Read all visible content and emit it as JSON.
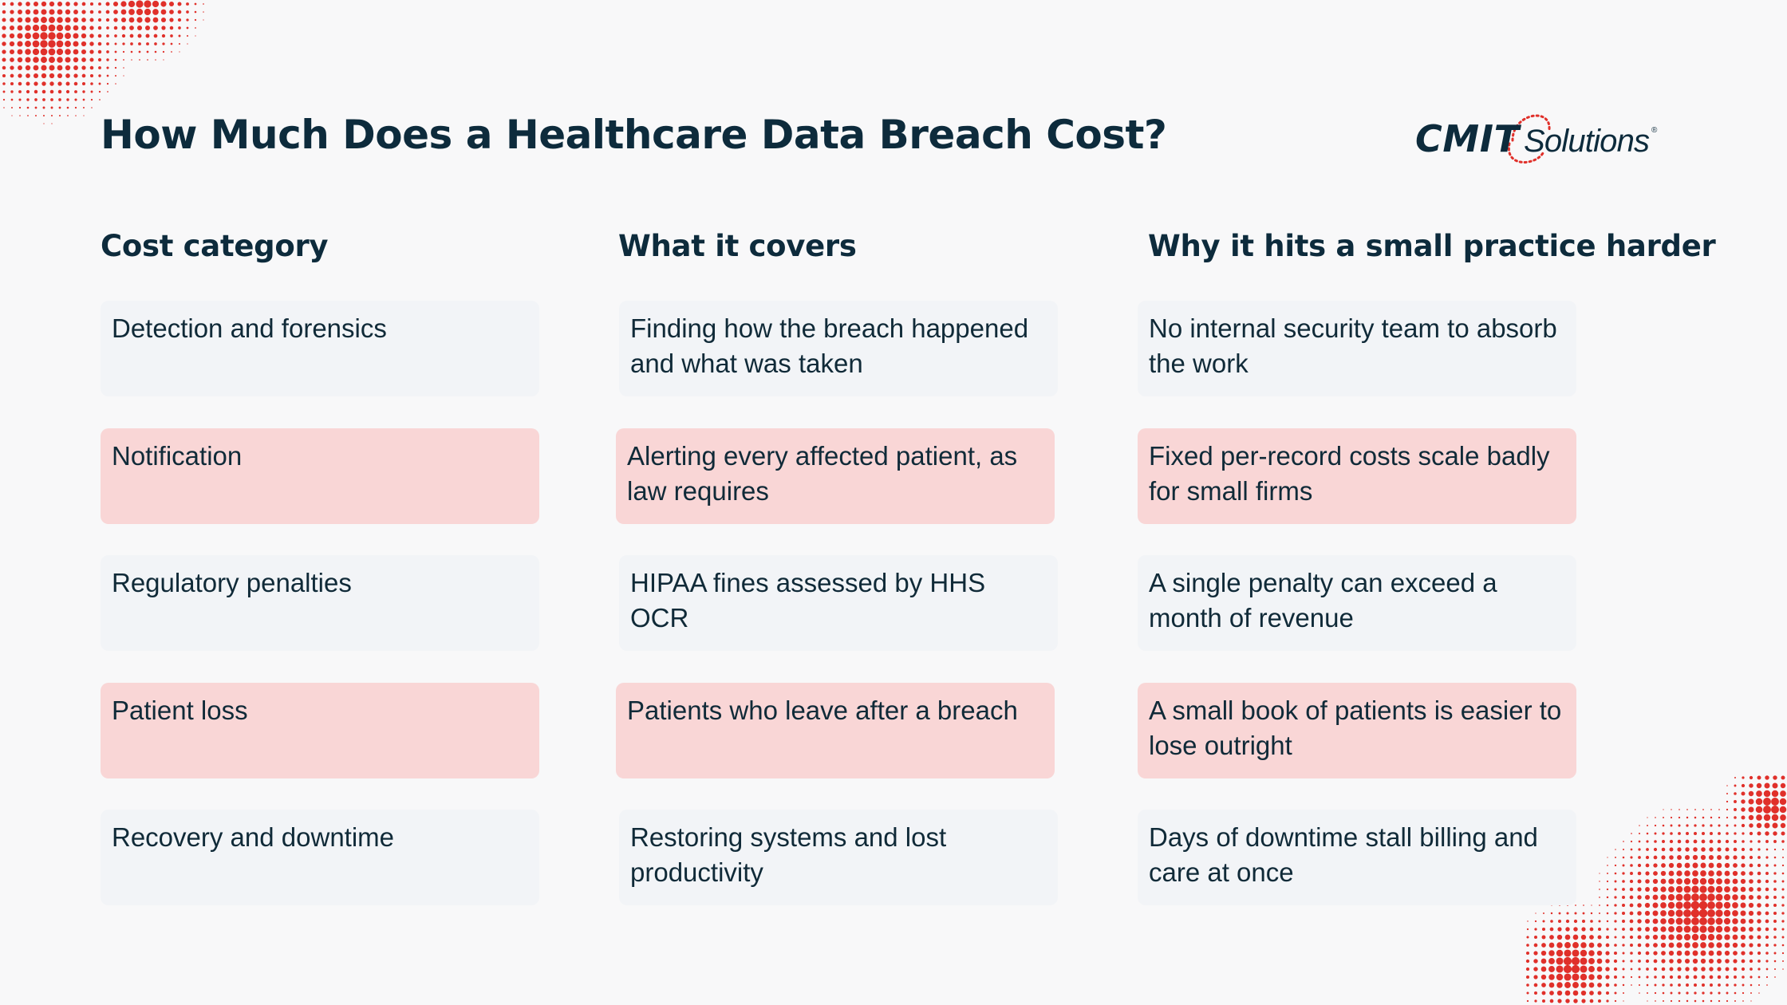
{
  "title": "How Much Does a Healthcare Data Breach Cost?",
  "logo": {
    "text_cmit": "CMIT",
    "text_solutions": "Solutions",
    "registered_mark": "®"
  },
  "colors": {
    "navy": "#0d2b3c",
    "accent_red": "#e0302a",
    "row_pink": "#f9d6d6",
    "row_light": "#f2f4f7"
  },
  "table": {
    "headers": [
      "Cost category",
      "What it covers",
      "Why it hits a small practice harder"
    ],
    "rows": [
      {
        "cells": [
          "Detection and forensics",
          "Finding how the breach happened and what was taken",
          "No internal security team to absorb the work"
        ],
        "highlighted": false
      },
      {
        "cells": [
          "Notification",
          "Alerting every affected patient, as law requires",
          "Fixed per-record costs scale badly for small firms"
        ],
        "highlighted": true
      },
      {
        "cells": [
          "Regulatory penalties",
          "HIPAA fines assessed by HHS OCR",
          "A single penalty can exceed a month of revenue"
        ],
        "highlighted": false
      },
      {
        "cells": [
          "Patient loss",
          "Patients who leave after a breach",
          "A small book of patients is easier to lose outright"
        ],
        "highlighted": true
      },
      {
        "cells": [
          "Recovery and downtime",
          "Restoring systems and lost productivity",
          "Days of downtime stall billing and care at once"
        ],
        "highlighted": false
      }
    ]
  }
}
